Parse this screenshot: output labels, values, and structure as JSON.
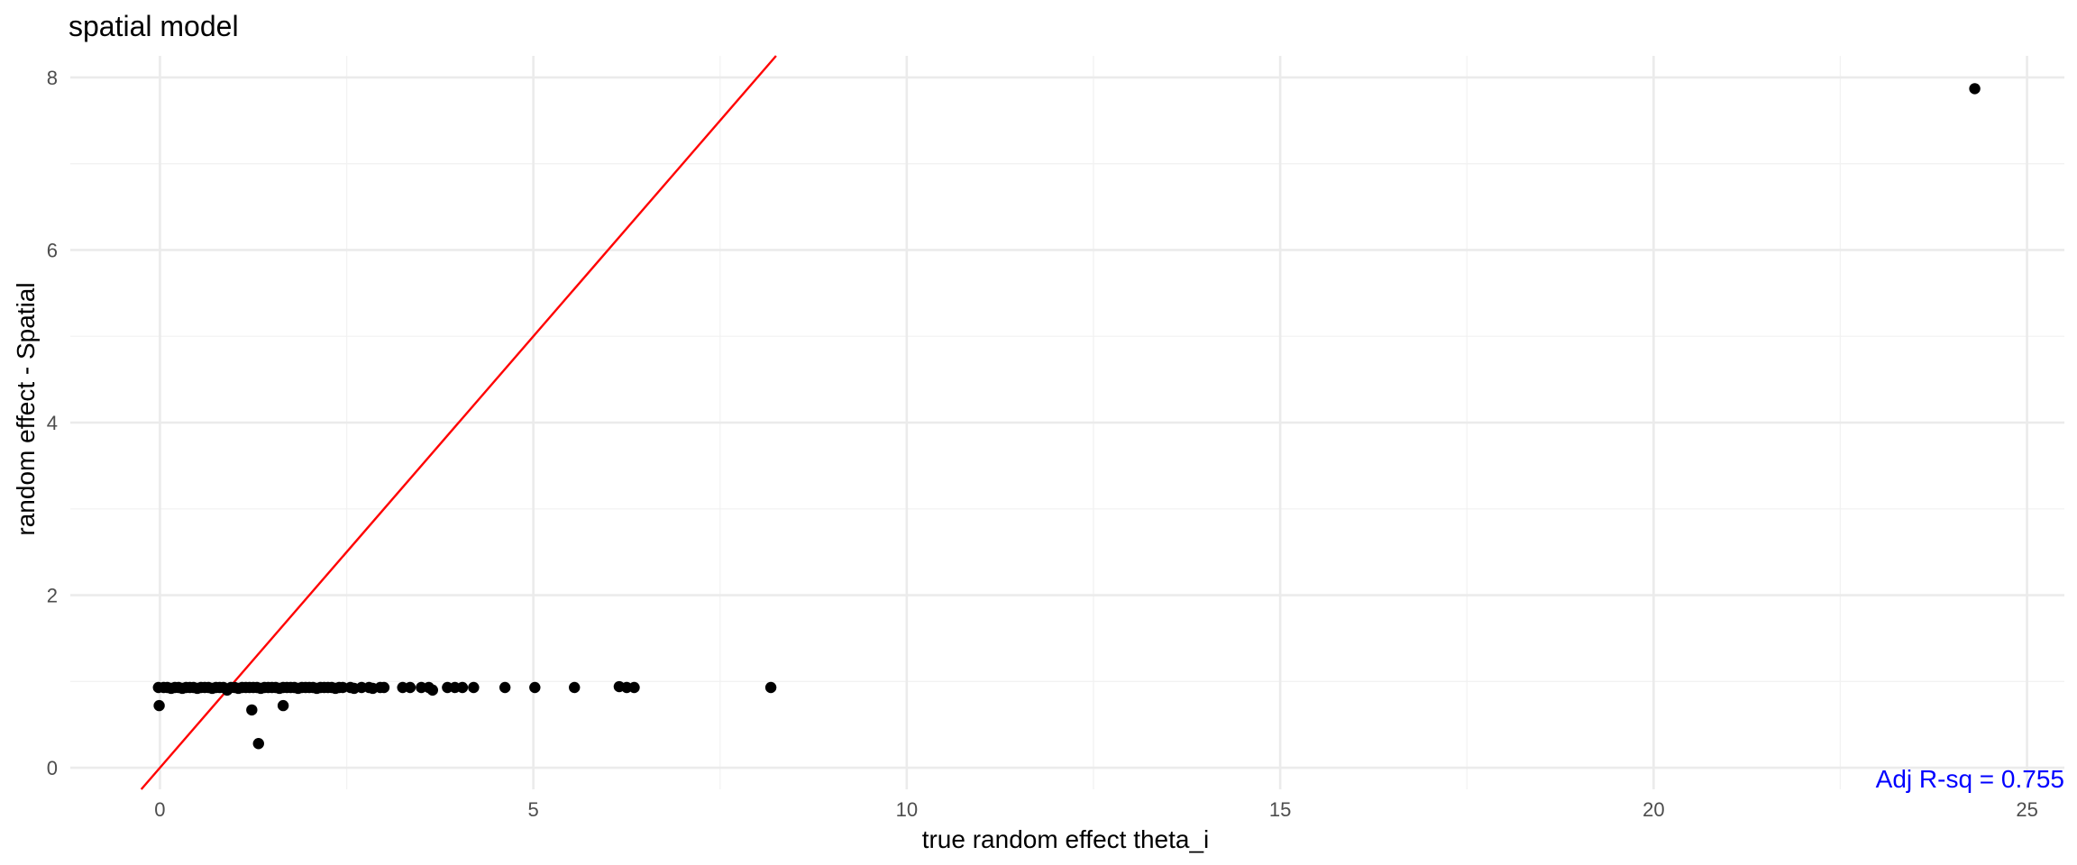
{
  "chart_data": {
    "type": "scatter",
    "title": "spatial model",
    "xlabel": "true random effect theta_i",
    "ylabel": "random effect - Spatial",
    "xlim": [
      -1.2,
      25.5
    ],
    "ylim": [
      -0.25,
      8.25
    ],
    "x_ticks": [
      0,
      5,
      10,
      15,
      20,
      25
    ],
    "y_ticks": [
      0,
      2,
      4,
      6,
      8
    ],
    "grid": true,
    "legend": "none",
    "colors": {
      "points": "#000000",
      "line": "#ff0000",
      "annotation": "#0000ff",
      "grid_major": "#ebebeb",
      "grid_minor": "#f2f2f2",
      "tick_text": "#4d4d4d"
    },
    "reference_line": {
      "slope": 1,
      "intercept": 0
    },
    "annotation": {
      "text": "Adj R-sq = 0.755",
      "x": 25.5,
      "y": 0
    },
    "points": [
      {
        "x": -0.02,
        "y": 0.93
      },
      {
        "x": -0.01,
        "y": 0.72
      },
      {
        "x": 0.05,
        "y": 0.93
      },
      {
        "x": 0.1,
        "y": 0.93
      },
      {
        "x": 0.15,
        "y": 0.92
      },
      {
        "x": 0.2,
        "y": 0.93
      },
      {
        "x": 0.25,
        "y": 0.93
      },
      {
        "x": 0.3,
        "y": 0.92
      },
      {
        "x": 0.35,
        "y": 0.93
      },
      {
        "x": 0.4,
        "y": 0.93
      },
      {
        "x": 0.45,
        "y": 0.93
      },
      {
        "x": 0.5,
        "y": 0.92
      },
      {
        "x": 0.55,
        "y": 0.93
      },
      {
        "x": 0.6,
        "y": 0.93
      },
      {
        "x": 0.65,
        "y": 0.93
      },
      {
        "x": 0.7,
        "y": 0.92
      },
      {
        "x": 0.75,
        "y": 0.93
      },
      {
        "x": 0.8,
        "y": 0.93
      },
      {
        "x": 0.85,
        "y": 0.93
      },
      {
        "x": 0.9,
        "y": 0.9
      },
      {
        "x": 0.95,
        "y": 0.93
      },
      {
        "x": 1.0,
        "y": 0.93
      },
      {
        "x": 1.05,
        "y": 0.92
      },
      {
        "x": 1.1,
        "y": 0.93
      },
      {
        "x": 1.15,
        "y": 0.93
      },
      {
        "x": 1.2,
        "y": 0.93
      },
      {
        "x": 1.25,
        "y": 0.93
      },
      {
        "x": 1.3,
        "y": 0.93
      },
      {
        "x": 1.35,
        "y": 0.92
      },
      {
        "x": 1.4,
        "y": 0.93
      },
      {
        "x": 1.45,
        "y": 0.93
      },
      {
        "x": 1.5,
        "y": 0.93
      },
      {
        "x": 1.55,
        "y": 0.93
      },
      {
        "x": 1.6,
        "y": 0.92
      },
      {
        "x": 1.65,
        "y": 0.93
      },
      {
        "x": 1.7,
        "y": 0.93
      },
      {
        "x": 1.75,
        "y": 0.93
      },
      {
        "x": 1.8,
        "y": 0.93
      },
      {
        "x": 1.85,
        "y": 0.92
      },
      {
        "x": 1.9,
        "y": 0.93
      },
      {
        "x": 1.95,
        "y": 0.93
      },
      {
        "x": 2.0,
        "y": 0.93
      },
      {
        "x": 2.05,
        "y": 0.93
      },
      {
        "x": 2.1,
        "y": 0.92
      },
      {
        "x": 2.15,
        "y": 0.93
      },
      {
        "x": 2.2,
        "y": 0.93
      },
      {
        "x": 2.25,
        "y": 0.93
      },
      {
        "x": 2.3,
        "y": 0.93
      },
      {
        "x": 2.35,
        "y": 0.92
      },
      {
        "x": 2.4,
        "y": 0.93
      },
      {
        "x": 2.45,
        "y": 0.93
      },
      {
        "x": 2.55,
        "y": 0.93
      },
      {
        "x": 2.6,
        "y": 0.92
      },
      {
        "x": 2.7,
        "y": 0.93
      },
      {
        "x": 2.8,
        "y": 0.93
      },
      {
        "x": 2.85,
        "y": 0.92
      },
      {
        "x": 2.95,
        "y": 0.93
      },
      {
        "x": 3.0,
        "y": 0.93
      },
      {
        "x": 1.23,
        "y": 0.67
      },
      {
        "x": 1.32,
        "y": 0.28
      },
      {
        "x": 1.65,
        "y": 0.72
      },
      {
        "x": 3.25,
        "y": 0.93
      },
      {
        "x": 3.35,
        "y": 0.93
      },
      {
        "x": 3.5,
        "y": 0.93
      },
      {
        "x": 3.6,
        "y": 0.93
      },
      {
        "x": 3.65,
        "y": 0.9
      },
      {
        "x": 3.85,
        "y": 0.93
      },
      {
        "x": 3.95,
        "y": 0.93
      },
      {
        "x": 4.05,
        "y": 0.93
      },
      {
        "x": 4.2,
        "y": 0.93
      },
      {
        "x": 4.62,
        "y": 0.93
      },
      {
        "x": 5.02,
        "y": 0.93
      },
      {
        "x": 5.55,
        "y": 0.93
      },
      {
        "x": 6.15,
        "y": 0.94
      },
      {
        "x": 6.25,
        "y": 0.93
      },
      {
        "x": 6.35,
        "y": 0.93
      },
      {
        "x": 8.18,
        "y": 0.93
      },
      {
        "x": 24.3,
        "y": 7.87
      }
    ]
  }
}
